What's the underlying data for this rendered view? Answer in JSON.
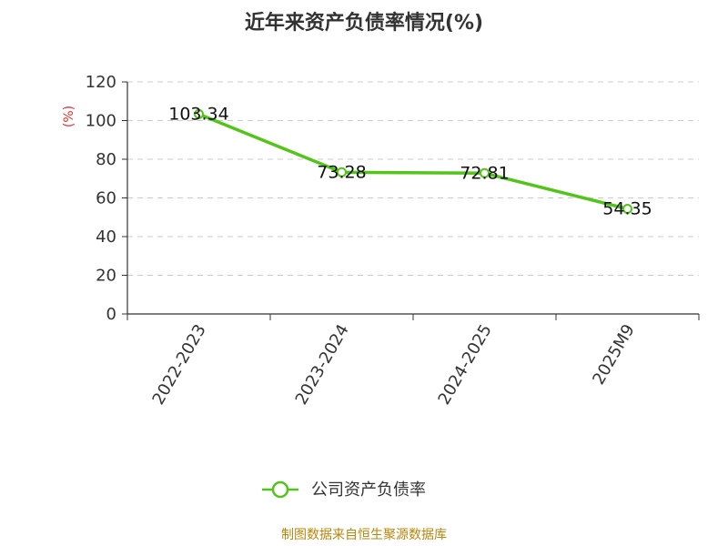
{
  "chart_data": {
    "type": "line",
    "title": "近年来资产负债率情况(%)",
    "ylabel": "(%)",
    "categories": [
      "2022-2023",
      "2023-2024",
      "2024-2025",
      "2025M9"
    ],
    "series": [
      {
        "name": "公司资产负债率",
        "values": [
          103.34,
          73.28,
          72.81,
          54.35
        ],
        "color": "#52c41a"
      }
    ],
    "data_labels": [
      "103.34",
      "73.28",
      "72.81",
      "54.35"
    ],
    "ylim": [
      0,
      120
    ],
    "yticks": [
      0,
      20,
      40,
      60,
      80,
      100,
      120
    ],
    "grid": "horizontal dashed",
    "legend_position": "bottom"
  },
  "source": "制图数据来自恒生聚源数据库"
}
